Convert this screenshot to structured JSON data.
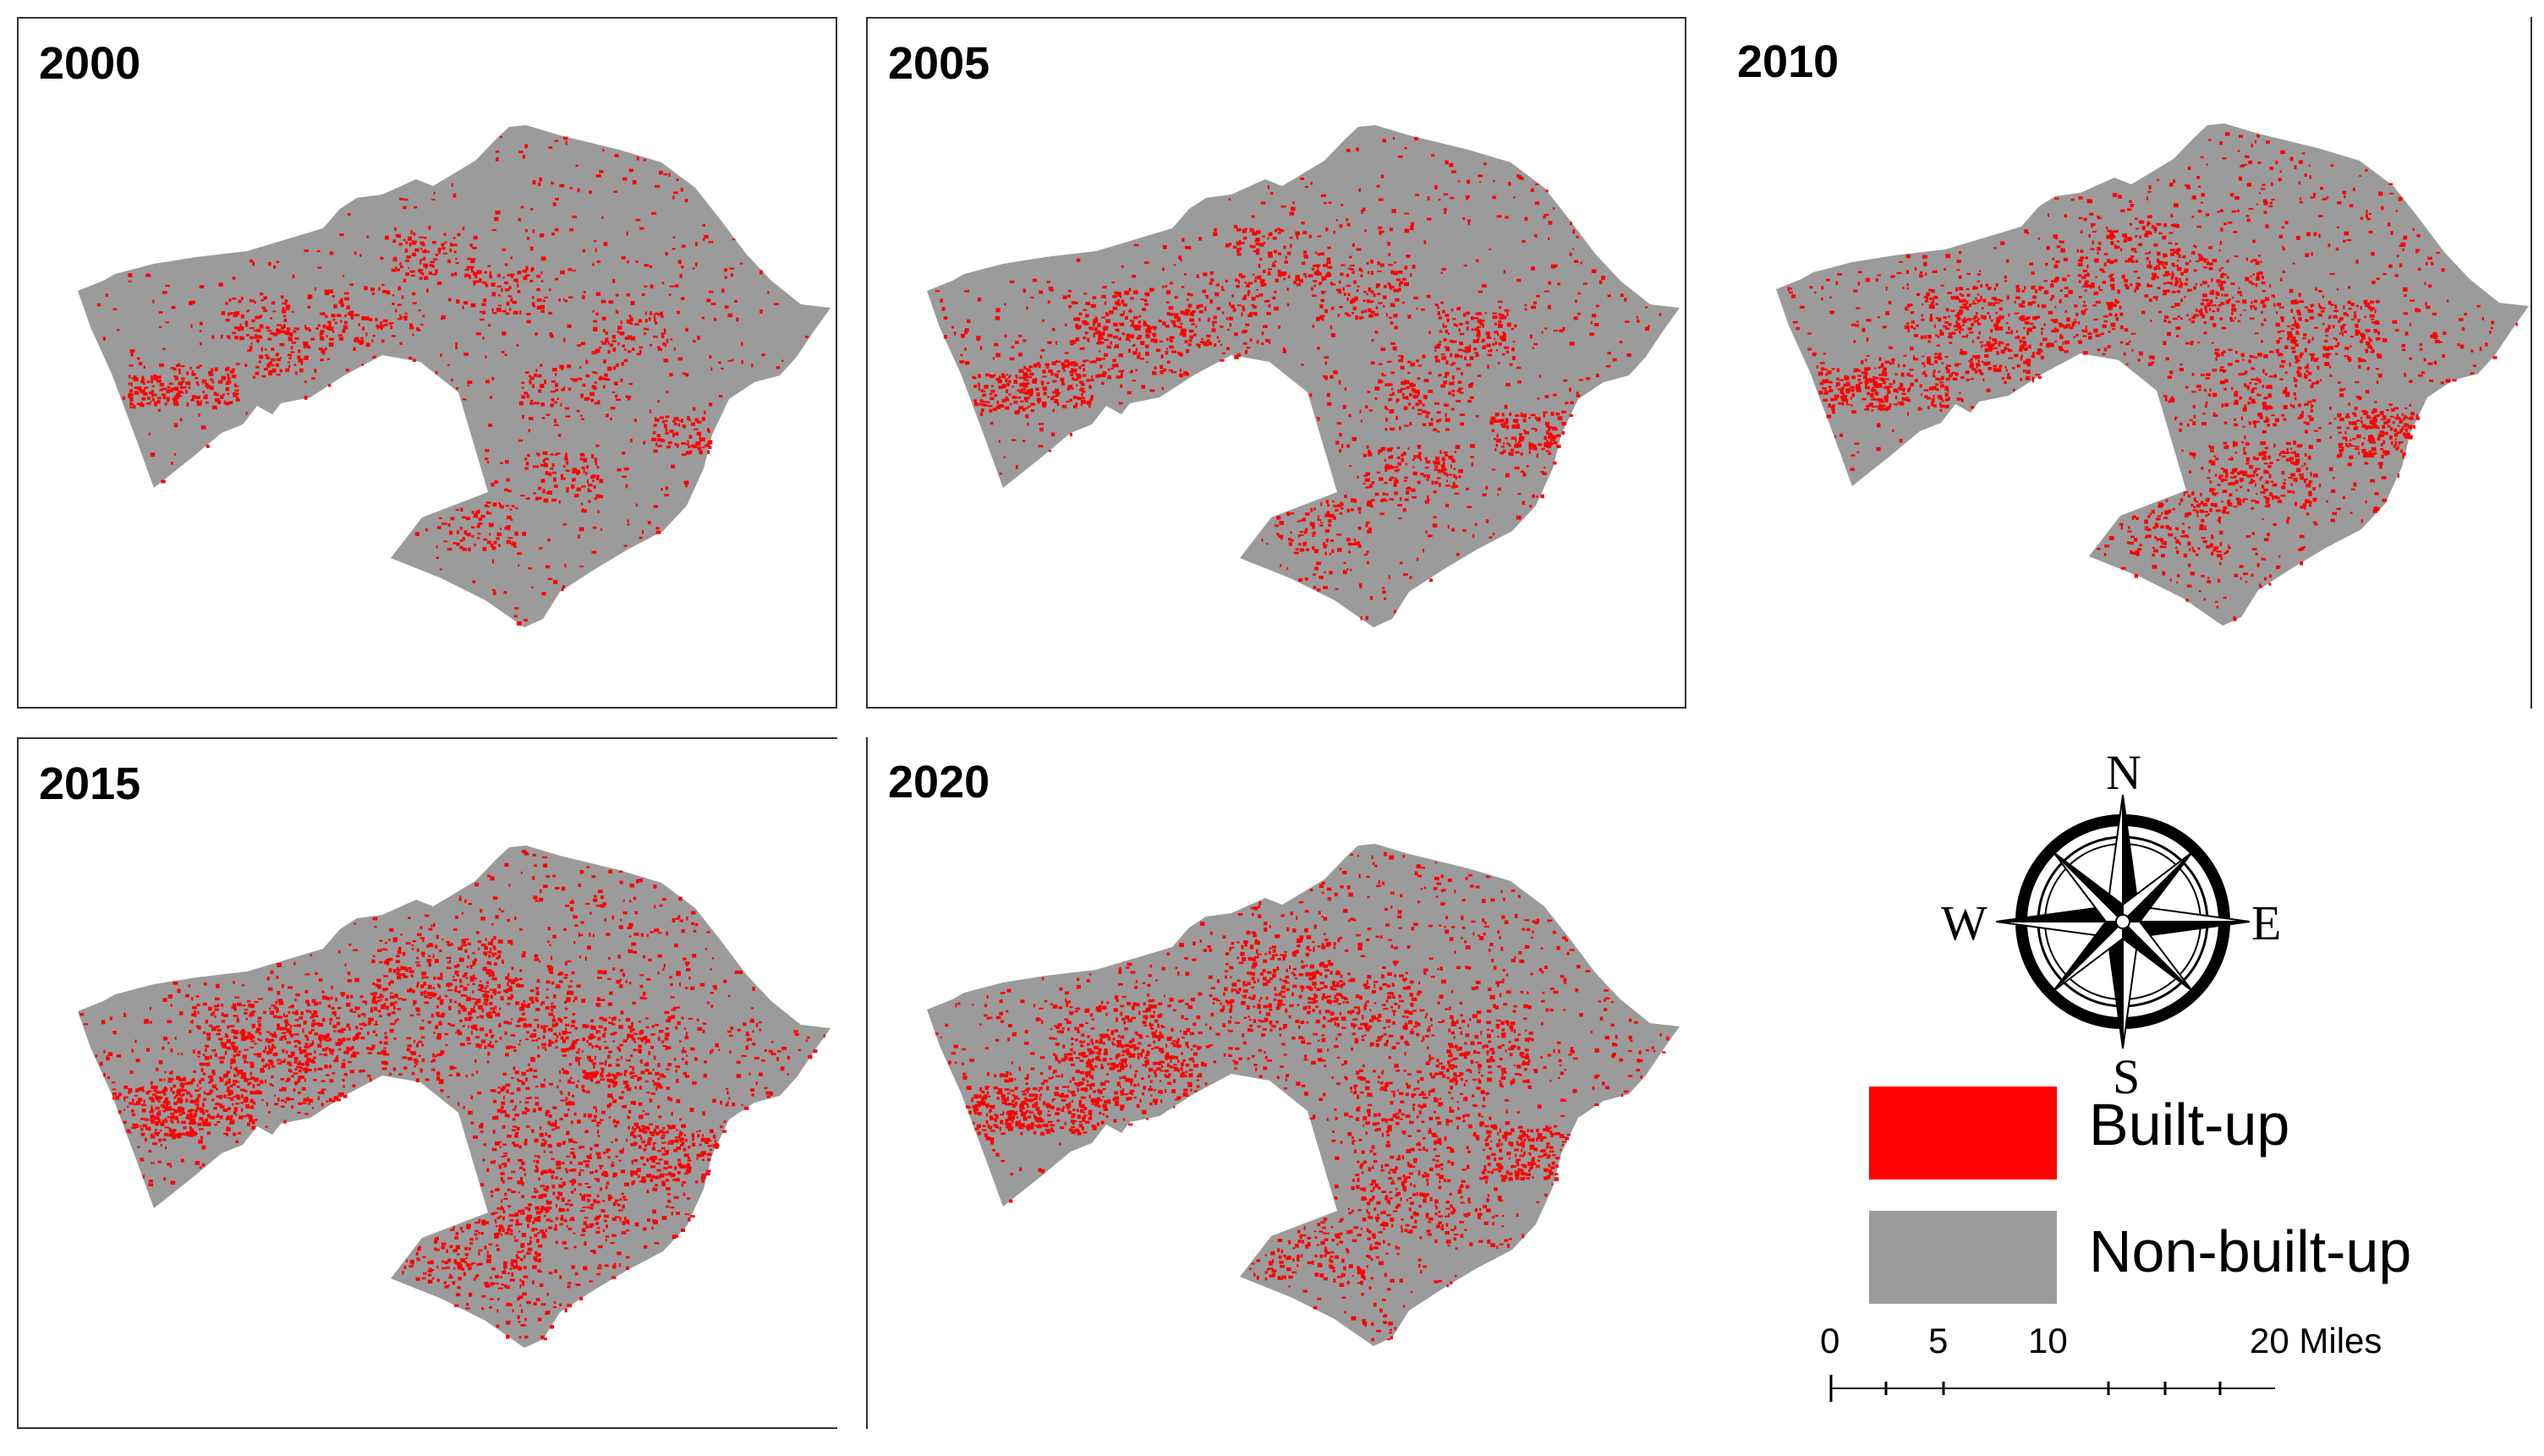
{
  "panels": [
    {
      "year": "2000",
      "density": 0.2
    },
    {
      "year": "2005",
      "density": 0.32
    },
    {
      "year": "2010",
      "density": 0.48
    },
    {
      "year": "2015",
      "density": 0.68
    },
    {
      "year": "2020",
      "density": 0.58
    }
  ],
  "compass": {
    "n": "N",
    "s": "S",
    "e": "E",
    "w": "W"
  },
  "legend": {
    "built_up_label": "Built-up",
    "non_built_up_label": "Non-built-up",
    "built_up_color": "#ff0000",
    "non_built_up_color": "#9b9b9b"
  },
  "scale": {
    "t0": "0",
    "t5": "5",
    "t10": "10",
    "t20": "20 Miles"
  }
}
